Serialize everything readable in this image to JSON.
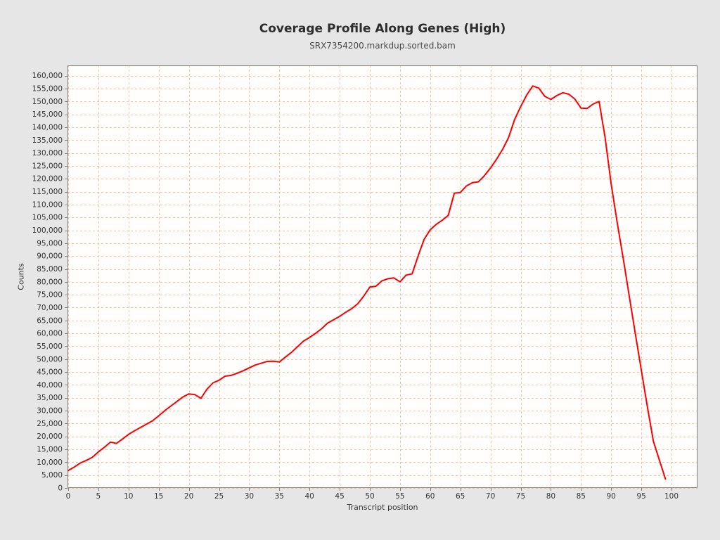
{
  "header": {
    "title": "Coverage Profile Along Genes (High)",
    "subtitle": "SRX7354200.markdup.sorted.bam"
  },
  "axes": {
    "x": {
      "label": "Transcript position",
      "ticks": [
        0,
        5,
        10,
        15,
        20,
        25,
        30,
        35,
        40,
        45,
        50,
        55,
        60,
        65,
        70,
        75,
        80,
        85,
        90,
        95,
        100
      ]
    },
    "y": {
      "label": "Counts",
      "ticks": [
        0,
        5000,
        10000,
        15000,
        20000,
        25000,
        30000,
        35000,
        40000,
        45000,
        50000,
        55000,
        60000,
        65000,
        70000,
        75000,
        80000,
        85000,
        90000,
        95000,
        100000,
        105000,
        110000,
        115000,
        120000,
        125000,
        130000,
        135000,
        140000,
        145000,
        150000,
        155000,
        160000
      ],
      "tick_format": "thousands-comma"
    }
  },
  "style": {
    "page_background": "#e6e6e6",
    "plot_background": "#fffefd",
    "grid_color": "#f5c3a0",
    "grid_style": "dashed",
    "border_color": "#808080",
    "line_color": "#fe0000",
    "text_color": "#333333"
  },
  "chart_data": {
    "type": "line",
    "title": "Coverage Profile Along Genes (High)",
    "subtitle": "SRX7354200.markdup.sorted.bam",
    "xlabel": "Transcript position",
    "ylabel": "Counts",
    "xlim": [
      0,
      104.4
    ],
    "ylim": [
      0,
      164000
    ],
    "grid": "dashed, both axes, every tick",
    "legend": "none",
    "x_start": 0,
    "x_step": 1,
    "series": [
      {
        "name": "SRX7354200.markdup.sorted.bam",
        "color": "#fe0000",
        "values": [
          6800,
          8100,
          9700,
          10700,
          11900,
          14000,
          15800,
          17800,
          17300,
          19000,
          20800,
          22200,
          23500,
          24800,
          26100,
          28000,
          30000,
          31800,
          33500,
          35300,
          36500,
          36200,
          34800,
          38300,
          40800,
          41800,
          43400,
          43700,
          44500,
          45500,
          46600,
          47700,
          48400,
          49100,
          49200,
          48900,
          50800,
          52600,
          54800,
          57000,
          58400,
          60000,
          61800,
          64000,
          65300,
          66600,
          68200,
          69600,
          71500,
          74500,
          78000,
          78300,
          80400,
          81200,
          81500,
          80000,
          82600,
          83100,
          90000,
          96500,
          100200,
          102300,
          103900,
          105800,
          114400,
          114700,
          117200,
          118500,
          118800,
          121200,
          124200,
          127600,
          131400,
          136000,
          143000,
          148000,
          152500,
          156000,
          155200,
          152000,
          150800,
          152300,
          153400,
          152800,
          150900,
          147400,
          147300,
          149000,
          150000,
          136000,
          118000,
          103000,
          89000,
          74500,
          60000,
          45700,
          31500,
          18100,
          10800,
          3500
        ]
      }
    ]
  }
}
